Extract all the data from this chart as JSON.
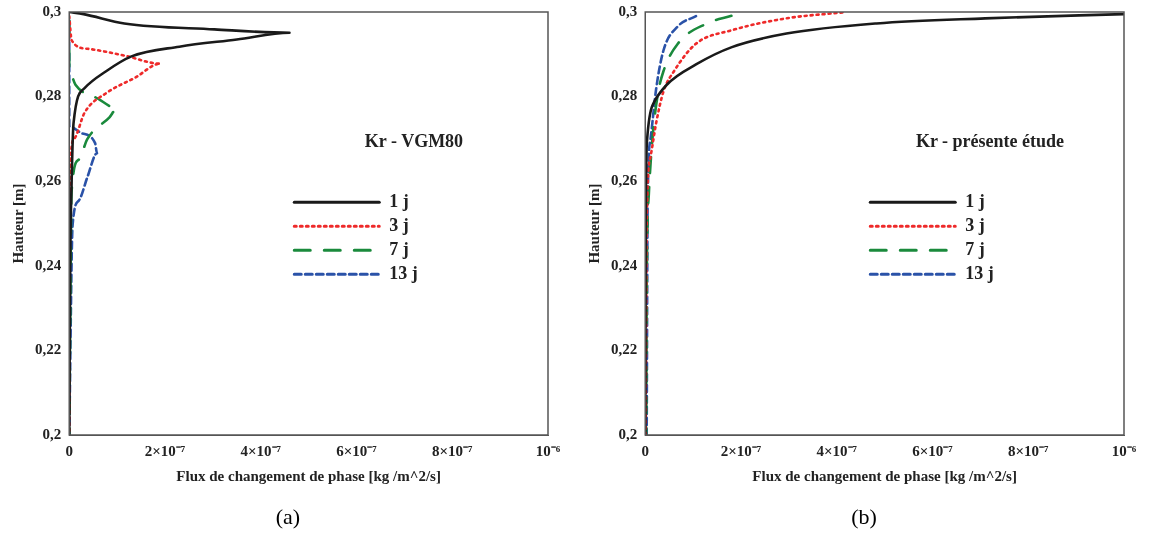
{
  "chart_data": [
    {
      "type": "line",
      "xlabel": "Flux de changement de phase [kg /m^2/s]",
      "ylabel": "Hauteur [m]",
      "annotations": [
        "Kr - VGM80",
        "(a)"
      ],
      "legend": "center",
      "grid": false,
      "marker": "none",
      "xlim": [
        0,
        1e-06
      ],
      "xticks": [
        0,
        {
          "value": 2e-07,
          "label": "2×10⁻⁷"
        },
        {
          "value": 4e-07,
          "label": "4×10⁻⁷"
        },
        {
          "value": 6e-07,
          "label": "6×10⁻⁷"
        },
        {
          "value": 8e-07,
          "label": "8×10⁻⁷"
        },
        {
          "value": 1e-06,
          "label": "10⁻⁶"
        }
      ],
      "ylim": [
        0.2,
        0.3
      ],
      "yticks": [
        {
          "value": 0.2,
          "label": "0,2"
        },
        {
          "value": 0.22,
          "label": "0,22"
        },
        {
          "value": 0.24,
          "label": "0,24"
        },
        {
          "value": 0.26,
          "label": "0,26"
        },
        {
          "value": 0.28,
          "label": "0,28"
        },
        {
          "value": 0.3,
          "label": "0,3"
        }
      ],
      "series": [
        {
          "name": "1 j",
          "color": "#1a1a1a",
          "line_style": "solid",
          "x": [
            0,
            3e-08,
            1.15e-07,
            3.03e-07,
            4.6e-07,
            3.5e-07,
            2.3e-07,
            1.3e-07,
            7.7e-08,
            3.2e-08,
            9e-09,
            5e-09,
            2e-09,
            0
          ],
          "values": [
            0.3,
            0.2995,
            0.2973,
            0.2959,
            0.2951,
            0.2935,
            0.2918,
            0.2895,
            0.286,
            0.282,
            0.2738,
            0.26,
            0.24,
            0.2
          ]
        },
        {
          "name": "3 j",
          "color": "#ee2a2a",
          "line_style": "dotted",
          "x": [
            0,
            5e-09,
            3.8e-08,
            1.15e-07,
            1.9e-07,
            1.38e-07,
            7.7e-08,
            3.2e-08,
            1e-08,
            1.5e-09,
            0
          ],
          "values": [
            0.299,
            0.2933,
            0.2913,
            0.2897,
            0.2878,
            0.2845,
            0.2808,
            0.2762,
            0.27,
            0.2617,
            0.2
          ]
        },
        {
          "name": "7 j",
          "color": "#1a8a3c",
          "line_style": "dashed",
          "x": [
            0,
            0,
            1.3e-08,
            6e-08,
            1e-07,
            8.4e-08,
            3.8e-08,
            2e-08,
            5e-09,
            0
          ],
          "values": [
            0.298,
            0.286,
            0.2828,
            0.2795,
            0.2772,
            0.2751,
            0.27,
            0.2651,
            0.2578,
            0.2
          ]
        },
        {
          "name": "13 j",
          "color": "#2a52a8",
          "line_style": "dashed",
          "x": [
            0,
            0,
            2.5e-08,
            5.4e-08,
            5.8e-08,
            3.8e-08,
            2e-08,
            7e-09,
            0
          ],
          "values": [
            0.298,
            0.273,
            0.2714,
            0.269,
            0.2666,
            0.261,
            0.2554,
            0.2497,
            0.2
          ]
        }
      ]
    },
    {
      "type": "line",
      "xlabel": "Flux de changement de phase [kg /m^2/s]",
      "ylabel": "Hauteur [m]",
      "annotations": [
        "Kr - présente étude",
        "(b)"
      ],
      "legend": "center",
      "grid": false,
      "marker": "none",
      "xlim": [
        0,
        1e-06
      ],
      "xticks": [
        0,
        {
          "value": 2e-07,
          "label": "2×10⁻⁷"
        },
        {
          "value": 4e-07,
          "label": "4×10⁻⁷"
        },
        {
          "value": 6e-07,
          "label": "6×10⁻⁷"
        },
        {
          "value": 8e-07,
          "label": "8×10⁻⁷"
        },
        {
          "value": 1e-06,
          "label": "10⁻⁶"
        }
      ],
      "ylim": [
        0.2,
        0.3
      ],
      "yticks": [
        {
          "value": 0.2,
          "label": "0,2"
        },
        {
          "value": 0.22,
          "label": "0,22"
        },
        {
          "value": 0.24,
          "label": "0,24"
        },
        {
          "value": 0.26,
          "label": "0,26"
        },
        {
          "value": 0.28,
          "label": "0,28"
        },
        {
          "value": 0.3,
          "label": "0,3"
        }
      ],
      "series": [
        {
          "name": "1 j",
          "color": "#1a1a1a",
          "line_style": "solid",
          "x": [
            1e-06,
            7.1e-07,
            4.83e-07,
            2.95e-07,
            1.81e-07,
            1.06e-07,
            4.5e-08,
            1.5e-08,
            4e-09,
            1e-09,
            0
          ],
          "values": [
            0.2995,
            0.2985,
            0.2973,
            0.2949,
            0.2917,
            0.2876,
            0.2828,
            0.2779,
            0.27,
            0.25,
            0.2
          ]
        },
        {
          "name": "3 j",
          "color": "#ee2a2a",
          "line_style": "dotted",
          "x": [
            4.12e-07,
            2.95e-07,
            1.81e-07,
            1.06e-07,
            6e-08,
            3.8e-08,
            2.3e-08,
            1.1e-08,
            3e-09,
            1e-09
          ],
          "values": [
            0.2999,
            0.2985,
            0.2957,
            0.2925,
            0.286,
            0.2812,
            0.2739,
            0.2658,
            0.25,
            0.2
          ]
        },
        {
          "name": "7 j",
          "color": "#1a8a3c",
          "line_style": "dashed",
          "x": [
            1.8e-07,
            1.29e-07,
            6.8e-08,
            3.8e-08,
            2.6e-08,
            1.5e-08,
            7.5e-09,
            3e-09,
            2e-09
          ],
          "values": [
            0.2991,
            0.2973,
            0.2925,
            0.286,
            0.2804,
            0.27,
            0.257,
            0.235,
            0.2
          ]
        },
        {
          "name": "13 j",
          "color": "#2a52a8",
          "line_style": "dashed",
          "x": [
            1.06e-07,
            6.8e-08,
            3.8e-08,
            2.3e-08,
            1.1e-08,
            5e-09,
            3e-09
          ],
          "values": [
            0.299,
            0.2966,
            0.2909,
            0.282,
            0.27,
            0.255,
            0.2
          ]
        }
      ]
    }
  ]
}
